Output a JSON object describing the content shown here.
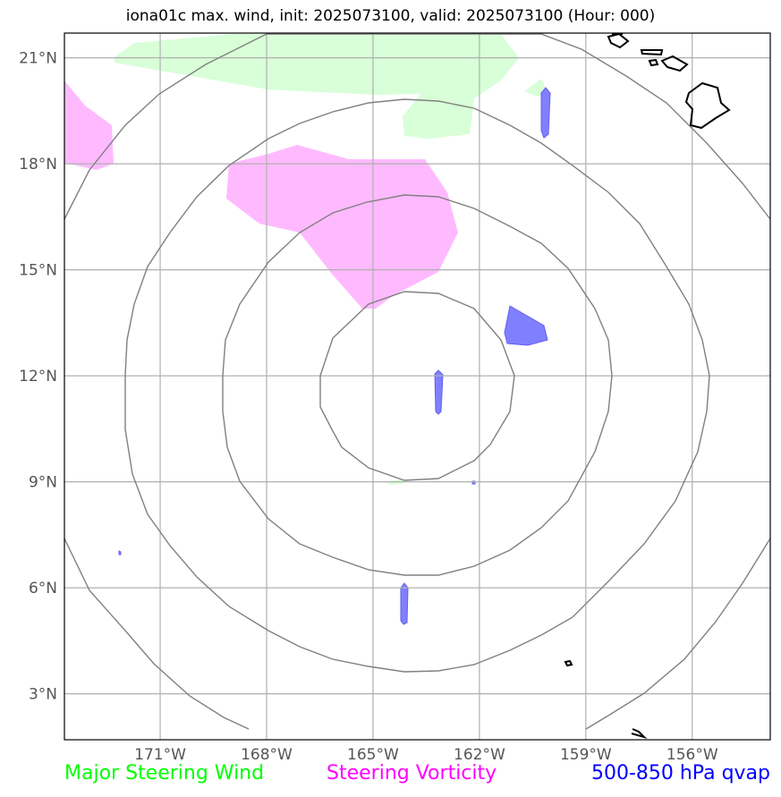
{
  "title": "iona01c max. wind, init: 2025073100, valid: 2025073100 (Hour: 000)",
  "map": {
    "lon_range": [
      -173.7,
      -153.8
    ],
    "lat_range": [
      1.7,
      21.7
    ],
    "lon_ticks": [
      -171,
      -168,
      -165,
      -162,
      -159,
      -156
    ],
    "lat_ticks": [
      3,
      6,
      9,
      12,
      15,
      18,
      21
    ],
    "lon_tick_labels": [
      "171°W",
      "168°W",
      "165°W",
      "162°W",
      "159°W",
      "156°W"
    ],
    "lat_tick_labels": [
      "3°N",
      "6°N",
      "9°N",
      "12°N",
      "15°N",
      "18°N",
      "21°N"
    ],
    "range_rings_center": [
      -163.5,
      11.5
    ],
    "gridlines": true,
    "colors": {
      "major_steering_wind": "#00ff00",
      "steering_vorticity": "#ff00ff",
      "qvap": "#0000ff",
      "rings": "#808080",
      "grid": "#b0b0b0"
    }
  },
  "legend": {
    "major_steering_wind": "Major Steering Wind",
    "steering_vorticity": "Steering Vorticity",
    "qvap": "500-850 hPa qvap"
  }
}
